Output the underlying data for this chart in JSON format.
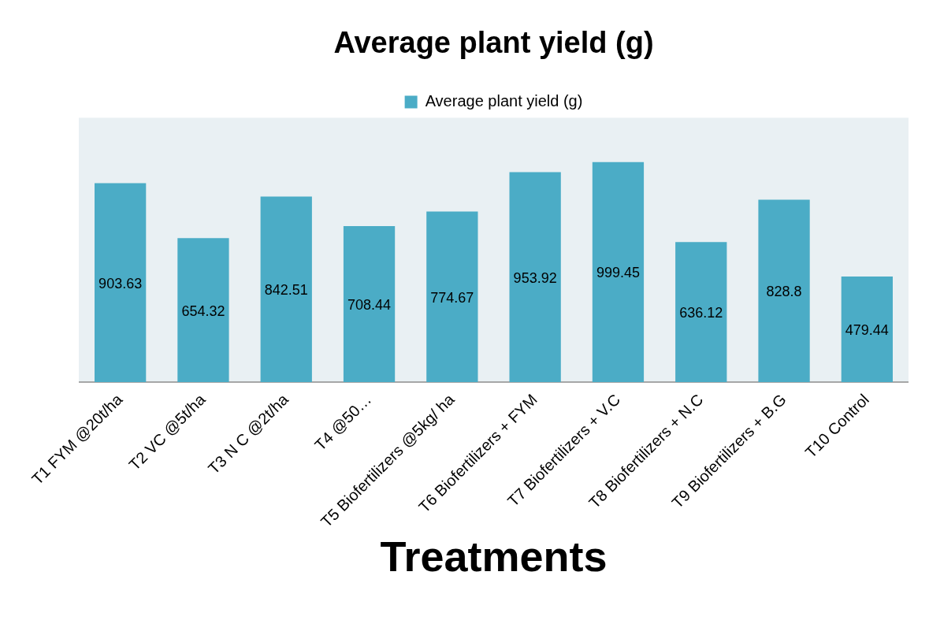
{
  "chart_data": {
    "type": "bar",
    "title": "Average plant yield (g)",
    "xlabel": "Treatments",
    "categories": [
      "T1 FYM @20t/ha",
      "T2 VC @5t/ha",
      "T3 N C @2t/ha",
      "T4 @50…",
      "T5 Biofertilizers @5kg/ ha",
      "T6 Biofertilizers + FYM",
      "T7 Biofertilizers + V.C",
      "T8 Biofertilizers + N.C",
      "T9 Biofertilizers + B.G",
      "T10 Control"
    ],
    "series": [
      {
        "name": "Average plant yield (g)",
        "color": "#4bacc6",
        "values": [
          903.63,
          654.32,
          842.51,
          708.44,
          774.67,
          953.92,
          999.45,
          636.12,
          828.8,
          479.44
        ]
      }
    ],
    "legend": "top",
    "data_labels": true
  }
}
